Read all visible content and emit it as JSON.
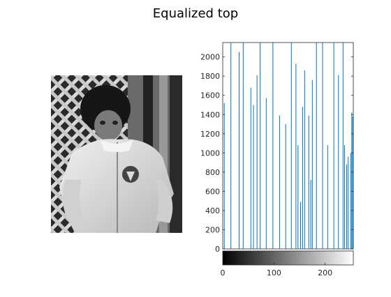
{
  "title": "Equalized top",
  "image_panel": {
    "description_icon": "grayscale-photo-child-in-white-jacket",
    "colors": {
      "light": "#e6e6e6",
      "dark": "#1a1a1a"
    }
  },
  "chart_data": {
    "type": "bar",
    "style": "stem",
    "series_color": "#0072bd",
    "title": "Equalized top",
    "xlabel": "",
    "ylabel": "",
    "xlim": [
      0,
      255
    ],
    "ylim": [
      0,
      2150
    ],
    "yticks": [
      0,
      200,
      400,
      600,
      800,
      1000,
      1200,
      1400,
      1600,
      1800,
      2000
    ],
    "colorbar": {
      "ticks": [
        0,
        100,
        200
      ],
      "range": [
        0,
        255
      ],
      "colormap": "gray"
    },
    "stems": [
      {
        "x": 3,
        "y": 1520
      },
      {
        "x": 16,
        "y": 2150
      },
      {
        "x": 32,
        "y": 2050
      },
      {
        "x": 40,
        "y": 2150
      },
      {
        "x": 55,
        "y": 1680
      },
      {
        "x": 60,
        "y": 1500
      },
      {
        "x": 67,
        "y": 1810
      },
      {
        "x": 73,
        "y": 2150
      },
      {
        "x": 85,
        "y": 1570
      },
      {
        "x": 98,
        "y": 2150
      },
      {
        "x": 111,
        "y": 1390
      },
      {
        "x": 123,
        "y": 1300
      },
      {
        "x": 134,
        "y": 2150
      },
      {
        "x": 143,
        "y": 1930
      },
      {
        "x": 147,
        "y": 1080
      },
      {
        "x": 152,
        "y": 490
      },
      {
        "x": 156,
        "y": 1480
      },
      {
        "x": 160,
        "y": 1860
      },
      {
        "x": 168,
        "y": 1390
      },
      {
        "x": 172,
        "y": 720
      },
      {
        "x": 175,
        "y": 1760
      },
      {
        "x": 183,
        "y": 2150
      },
      {
        "x": 195,
        "y": 2150
      },
      {
        "x": 205,
        "y": 1080
      },
      {
        "x": 217,
        "y": 2150
      },
      {
        "x": 226,
        "y": 1810
      },
      {
        "x": 235,
        "y": 2150
      },
      {
        "x": 238,
        "y": 1080
      },
      {
        "x": 242,
        "y": 880
      },
      {
        "x": 245,
        "y": 960
      },
      {
        "x": 250,
        "y": 1000
      },
      {
        "x": 252,
        "y": 1420
      },
      {
        "x": 254,
        "y": 1380
      }
    ]
  }
}
